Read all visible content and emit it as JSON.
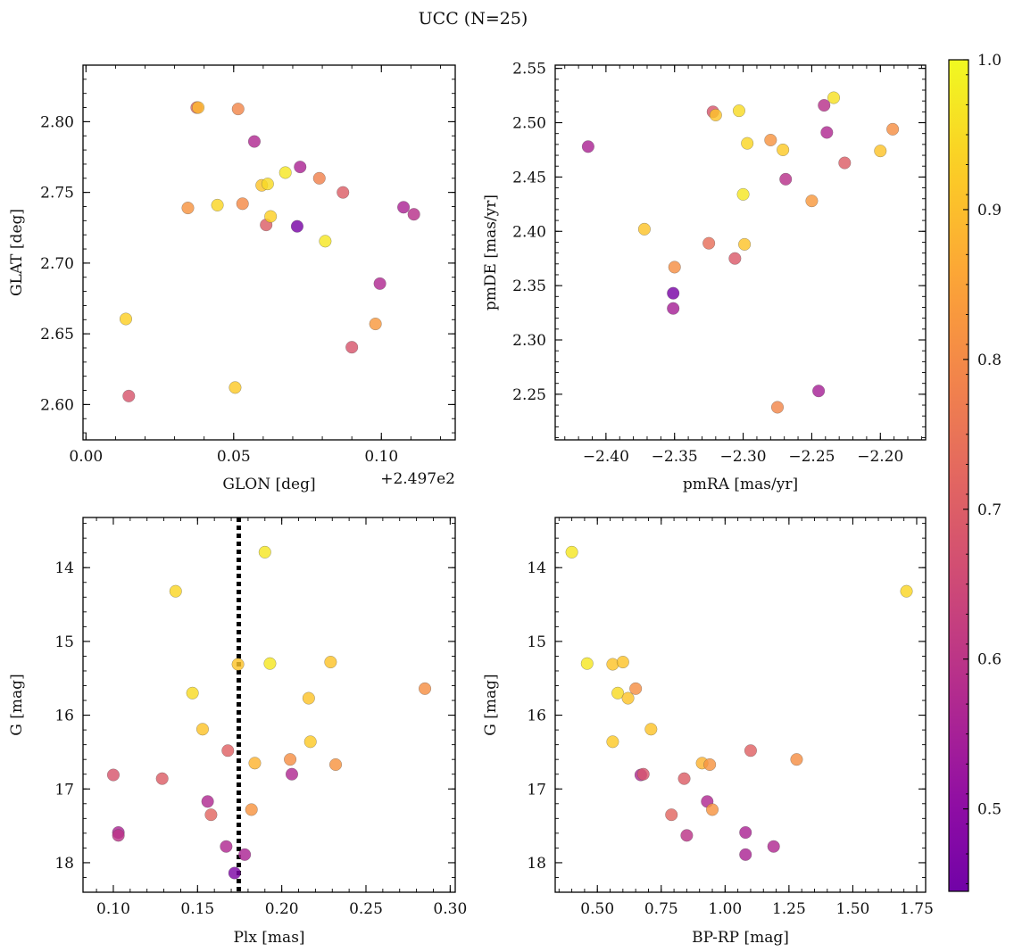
{
  "title": "UCC (N=25)",
  "colorbar": {
    "colormap": "plasma",
    "vmin": 0.445,
    "vmax": 1.0,
    "ticks": [
      0.5,
      0.6,
      0.7,
      0.8,
      0.9,
      1.0
    ],
    "tick_labels": [
      "0.5",
      "0.6",
      "0.7",
      "0.8",
      "0.9",
      "1.0"
    ]
  },
  "chart_data": [
    {
      "type": "scatter",
      "panel": "top-left",
      "xlabel": "GLON [deg]",
      "ylabel": "GLAT [deg]",
      "x_offset_label": "+2.497e2",
      "xlim": [
        -0.001,
        0.125
      ],
      "ylim": [
        2.575,
        2.84
      ],
      "xticks": [
        0.0,
        0.05,
        0.1
      ],
      "xtick_labels": [
        "0.00",
        "0.05",
        "0.10"
      ],
      "yticks": [
        2.6,
        2.65,
        2.7,
        2.75,
        2.8
      ],
      "ytick_labels": [
        "2.60",
        "2.65",
        "2.70",
        "2.75",
        "2.80"
      ],
      "y_inverted": false,
      "points": [
        {
          "x": 0.0135,
          "y": 2.6605,
          "c": 0.93
        },
        {
          "x": 0.0145,
          "y": 2.606,
          "c": 0.68
        },
        {
          "x": 0.0345,
          "y": 2.739,
          "c": 0.82
        },
        {
          "x": 0.0375,
          "y": 2.81,
          "c": 0.72
        },
        {
          "x": 0.038,
          "y": 2.81,
          "c": 0.89
        },
        {
          "x": 0.0445,
          "y": 2.741,
          "c": 0.94
        },
        {
          "x": 0.0505,
          "y": 2.612,
          "c": 0.92
        },
        {
          "x": 0.0515,
          "y": 2.809,
          "c": 0.79
        },
        {
          "x": 0.053,
          "y": 2.742,
          "c": 0.8
        },
        {
          "x": 0.057,
          "y": 2.786,
          "c": 0.57
        },
        {
          "x": 0.0595,
          "y": 2.755,
          "c": 0.91
        },
        {
          "x": 0.061,
          "y": 2.727,
          "c": 0.7
        },
        {
          "x": 0.0615,
          "y": 2.756,
          "c": 0.95
        },
        {
          "x": 0.0625,
          "y": 2.733,
          "c": 0.93
        },
        {
          "x": 0.0675,
          "y": 2.764,
          "c": 0.97
        },
        {
          "x": 0.0715,
          "y": 2.726,
          "c": 0.46
        },
        {
          "x": 0.0725,
          "y": 2.768,
          "c": 0.56
        },
        {
          "x": 0.079,
          "y": 2.76,
          "c": 0.78
        },
        {
          "x": 0.081,
          "y": 2.7155,
          "c": 0.97
        },
        {
          "x": 0.087,
          "y": 2.75,
          "c": 0.7
        },
        {
          "x": 0.09,
          "y": 2.6405,
          "c": 0.68
        },
        {
          "x": 0.098,
          "y": 2.657,
          "c": 0.83
        },
        {
          "x": 0.0995,
          "y": 2.6855,
          "c": 0.57
        },
        {
          "x": 0.1075,
          "y": 2.7395,
          "c": 0.56
        },
        {
          "x": 0.111,
          "y": 2.7345,
          "c": 0.59
        }
      ]
    },
    {
      "type": "scatter",
      "panel": "top-right",
      "xlabel": "pmRA [mas/yr]",
      "ylabel": "pmDE [mas/yr]",
      "xlim": [
        -2.437,
        -2.167
      ],
      "ylim": [
        2.208,
        2.553
      ],
      "xticks": [
        -2.4,
        -2.35,
        -2.3,
        -2.25,
        -2.2
      ],
      "xtick_labels": [
        "−2.40",
        "−2.35",
        "−2.30",
        "−2.25",
        "−2.20"
      ],
      "yticks": [
        2.25,
        2.3,
        2.35,
        2.4,
        2.45,
        2.5,
        2.55
      ],
      "ytick_labels": [
        "2.25",
        "2.30",
        "2.35",
        "2.40",
        "2.45",
        "2.50",
        "2.55"
      ],
      "y_inverted": false,
      "points": [
        {
          "x": -2.413,
          "y": 2.478,
          "c": 0.56
        },
        {
          "x": -2.372,
          "y": 2.402,
          "c": 0.91
        },
        {
          "x": -2.351,
          "y": 2.343,
          "c": 0.46
        },
        {
          "x": -2.351,
          "y": 2.329,
          "c": 0.55
        },
        {
          "x": -2.35,
          "y": 2.367,
          "c": 0.81
        },
        {
          "x": -2.325,
          "y": 2.389,
          "c": 0.74
        },
        {
          "x": -2.322,
          "y": 2.51,
          "c": 0.68
        },
        {
          "x": -2.32,
          "y": 2.507,
          "c": 0.91
        },
        {
          "x": -2.306,
          "y": 2.375,
          "c": 0.69
        },
        {
          "x": -2.303,
          "y": 2.511,
          "c": 0.95
        },
        {
          "x": -2.3,
          "y": 2.434,
          "c": 0.97
        },
        {
          "x": -2.299,
          "y": 2.388,
          "c": 0.91
        },
        {
          "x": -2.297,
          "y": 2.481,
          "c": 0.94
        },
        {
          "x": -2.28,
          "y": 2.484,
          "c": 0.82
        },
        {
          "x": -2.275,
          "y": 2.238,
          "c": 0.79
        },
        {
          "x": -2.271,
          "y": 2.475,
          "c": 0.92
        },
        {
          "x": -2.269,
          "y": 2.448,
          "c": 0.59
        },
        {
          "x": -2.25,
          "y": 2.428,
          "c": 0.83
        },
        {
          "x": -2.245,
          "y": 2.253,
          "c": 0.55
        },
        {
          "x": -2.241,
          "y": 2.516,
          "c": 0.59
        },
        {
          "x": -2.239,
          "y": 2.491,
          "c": 0.57
        },
        {
          "x": -2.234,
          "y": 2.523,
          "c": 0.96
        },
        {
          "x": -2.226,
          "y": 2.463,
          "c": 0.7
        },
        {
          "x": -2.2,
          "y": 2.474,
          "c": 0.91
        },
        {
          "x": -2.191,
          "y": 2.494,
          "c": 0.81
        }
      ]
    },
    {
      "type": "scatter",
      "panel": "bottom-left",
      "xlabel": "Plx [mas]",
      "ylabel": "G [mag]",
      "xlim": [
        0.082,
        0.303
      ],
      "ylim": [
        13.32,
        18.4
      ],
      "xticks": [
        0.1,
        0.15,
        0.2,
        0.25,
        0.3
      ],
      "xtick_labels": [
        "0.10",
        "0.15",
        "0.20",
        "0.25",
        "0.30"
      ],
      "yticks": [
        14,
        15,
        16,
        17,
        18
      ],
      "ytick_labels": [
        "14",
        "15",
        "16",
        "17",
        "18"
      ],
      "y_inverted": true,
      "vline": {
        "x": 0.1745,
        "style": "dotted"
      },
      "points": [
        {
          "x": 0.1,
          "y": 16.81,
          "c": 0.68
        },
        {
          "x": 0.103,
          "y": 17.59,
          "c": 0.56
        },
        {
          "x": 0.103,
          "y": 17.63,
          "c": 0.6
        },
        {
          "x": 0.129,
          "y": 16.86,
          "c": 0.7
        },
        {
          "x": 0.137,
          "y": 14.32,
          "c": 0.94
        },
        {
          "x": 0.147,
          "y": 15.7,
          "c": 0.95
        },
        {
          "x": 0.153,
          "y": 16.19,
          "c": 0.91
        },
        {
          "x": 0.156,
          "y": 17.17,
          "c": 0.57
        },
        {
          "x": 0.158,
          "y": 17.35,
          "c": 0.72
        },
        {
          "x": 0.167,
          "y": 17.78,
          "c": 0.57
        },
        {
          "x": 0.168,
          "y": 16.48,
          "c": 0.71
        },
        {
          "x": 0.172,
          "y": 18.14,
          "c": 0.47
        },
        {
          "x": 0.174,
          "y": 15.31,
          "c": 0.91
        },
        {
          "x": 0.178,
          "y": 17.89,
          "c": 0.56
        },
        {
          "x": 0.182,
          "y": 17.28,
          "c": 0.82
        },
        {
          "x": 0.184,
          "y": 16.65,
          "c": 0.88
        },
        {
          "x": 0.19,
          "y": 13.79,
          "c": 0.97
        },
        {
          "x": 0.193,
          "y": 15.3,
          "c": 0.97
        },
        {
          "x": 0.205,
          "y": 16.6,
          "c": 0.81
        },
        {
          "x": 0.206,
          "y": 16.8,
          "c": 0.57
        },
        {
          "x": 0.216,
          "y": 15.77,
          "c": 0.91
        },
        {
          "x": 0.217,
          "y": 16.36,
          "c": 0.92
        },
        {
          "x": 0.229,
          "y": 15.28,
          "c": 0.91
        },
        {
          "x": 0.232,
          "y": 16.67,
          "c": 0.82
        },
        {
          "x": 0.285,
          "y": 15.64,
          "c": 0.81
        }
      ]
    },
    {
      "type": "scatter",
      "panel": "bottom-right",
      "xlabel": "BP-RP [mag]",
      "ylabel": "G [mag]",
      "xlim": [
        0.335,
        1.785
      ],
      "ylim": [
        13.32,
        18.4
      ],
      "xticks": [
        0.5,
        0.75,
        1.0,
        1.25,
        1.5,
        1.75
      ],
      "xtick_labels": [
        "0.50",
        "0.75",
        "1.00",
        "1.25",
        "1.50",
        "1.75"
      ],
      "yticks": [
        14,
        15,
        16,
        17,
        18
      ],
      "ytick_labels": [
        "14",
        "15",
        "16",
        "17",
        "18"
      ],
      "y_inverted": true,
      "points": [
        {
          "x": 0.4,
          "y": 13.79,
          "c": 0.97
        },
        {
          "x": 0.46,
          "y": 15.3,
          "c": 0.97
        },
        {
          "x": 0.56,
          "y": 16.36,
          "c": 0.92
        },
        {
          "x": 0.56,
          "y": 15.31,
          "c": 0.91
        },
        {
          "x": 0.58,
          "y": 15.7,
          "c": 0.95
        },
        {
          "x": 0.6,
          "y": 15.28,
          "c": 0.91
        },
        {
          "x": 0.62,
          "y": 15.77,
          "c": 0.91
        },
        {
          "x": 0.65,
          "y": 15.64,
          "c": 0.81
        },
        {
          "x": 0.67,
          "y": 16.81,
          "c": 0.57
        },
        {
          "x": 0.68,
          "y": 16.8,
          "c": 0.68
        },
        {
          "x": 0.71,
          "y": 16.19,
          "c": 0.91
        },
        {
          "x": 0.79,
          "y": 17.35,
          "c": 0.72
        },
        {
          "x": 0.84,
          "y": 16.86,
          "c": 0.7
        },
        {
          "x": 0.85,
          "y": 17.63,
          "c": 0.6
        },
        {
          "x": 0.91,
          "y": 16.65,
          "c": 0.88
        },
        {
          "x": 0.93,
          "y": 17.17,
          "c": 0.57
        },
        {
          "x": 0.94,
          "y": 16.67,
          "c": 0.82
        },
        {
          "x": 0.95,
          "y": 17.28,
          "c": 0.82
        },
        {
          "x": 1.08,
          "y": 17.59,
          "c": 0.56
        },
        {
          "x": 1.08,
          "y": 17.89,
          "c": 0.56
        },
        {
          "x": 1.1,
          "y": 16.48,
          "c": 0.71
        },
        {
          "x": 1.19,
          "y": 17.78,
          "c": 0.57
        },
        {
          "x": 1.28,
          "y": 16.6,
          "c": 0.81
        },
        {
          "x": 1.71,
          "y": 14.32,
          "c": 0.94
        }
      ]
    }
  ]
}
